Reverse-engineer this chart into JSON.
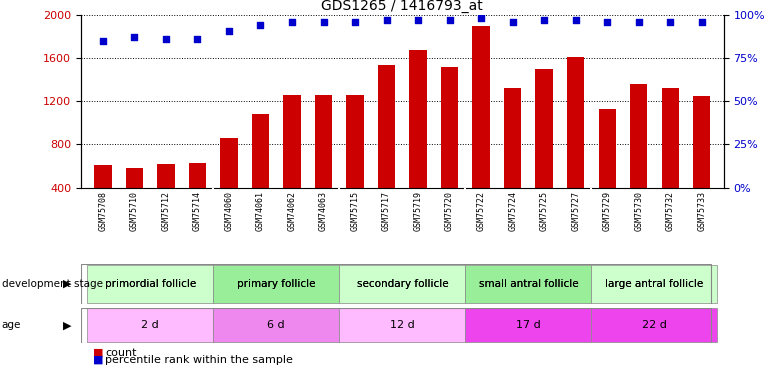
{
  "title": "GDS1265 / 1416793_at",
  "samples": [
    "GSM75708",
    "GSM75710",
    "GSM75712",
    "GSM75714",
    "GSM74060",
    "GSM74061",
    "GSM74062",
    "GSM74063",
    "GSM75715",
    "GSM75717",
    "GSM75719",
    "GSM75720",
    "GSM75722",
    "GSM75724",
    "GSM75725",
    "GSM75727",
    "GSM75729",
    "GSM75730",
    "GSM75732",
    "GSM75733"
  ],
  "counts": [
    610,
    580,
    620,
    630,
    860,
    1080,
    1260,
    1260,
    1260,
    1540,
    1680,
    1520,
    1900,
    1320,
    1500,
    1610,
    1130,
    1360,
    1320,
    1250
  ],
  "percentiles": [
    85,
    87,
    86,
    86,
    91,
    94,
    96,
    96,
    96,
    97,
    97,
    97,
    98,
    96,
    97,
    97,
    96,
    96,
    96,
    96
  ],
  "bar_color": "#cc0000",
  "dot_color": "#0000cc",
  "ylim_left": [
    400,
    2000
  ],
  "ylim_right": [
    0,
    100
  ],
  "yticks_left": [
    400,
    800,
    1200,
    1600,
    2000
  ],
  "yticks_right": [
    0,
    25,
    50,
    75,
    100
  ],
  "groups": [
    {
      "label": "primordial follicle",
      "start": 0,
      "end": 4
    },
    {
      "label": "primary follicle",
      "start": 4,
      "end": 8
    },
    {
      "label": "secondary follicle",
      "start": 8,
      "end": 12
    },
    {
      "label": "small antral follicle",
      "start": 12,
      "end": 16
    },
    {
      "label": "large antral follicle",
      "start": 16,
      "end": 20
    }
  ],
  "group_colors": [
    "#ccffcc",
    "#99ee99",
    "#ccffcc",
    "#99ee99",
    "#ccffcc"
  ],
  "ages": [
    {
      "label": "2 d",
      "start": 0,
      "end": 4
    },
    {
      "label": "6 d",
      "start": 4,
      "end": 8
    },
    {
      "label": "12 d",
      "start": 8,
      "end": 12
    },
    {
      "label": "17 d",
      "start": 12,
      "end": 16
    },
    {
      "label": "22 d",
      "start": 16,
      "end": 20
    }
  ],
  "age_colors": [
    "#ffbbff",
    "#ee88ee",
    "#ffbbff",
    "#ee44ee",
    "#ee44ee"
  ],
  "dev_stage_label": "development stage",
  "age_label": "age",
  "legend_count_label": "count",
  "legend_pct_label": "percentile rank within the sample",
  "background_color": "#ffffff",
  "grid_color": "#000000",
  "tick_label_color_left": "#cc0000",
  "tick_label_color_right": "#0000cc",
  "xtick_bg_color": "#d0d0d0",
  "title_fontsize": 10,
  "tick_fontsize": 8,
  "xtick_fontsize": 6,
  "group_boundaries": [
    0,
    4,
    8,
    12,
    16,
    20
  ],
  "n_samples": 20
}
